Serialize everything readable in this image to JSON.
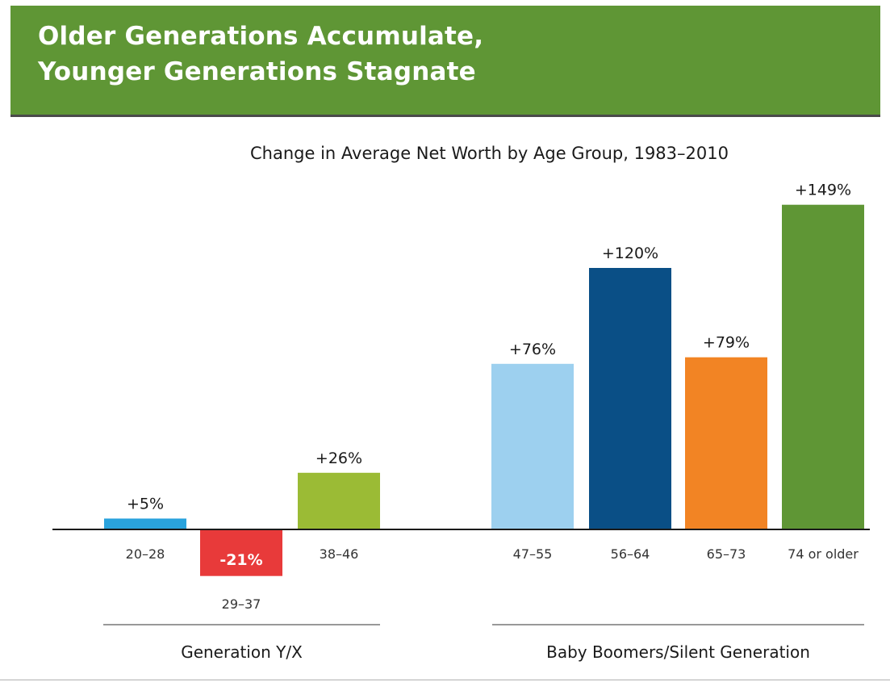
{
  "header": {
    "title_line1": "Older Generations Accumulate,",
    "title_line2": "Younger Generations Stagnate"
  },
  "chart_data": {
    "type": "bar",
    "title": "Change in Average Net Worth by Age Group, 1983–2010",
    "xlabel": "",
    "ylabel": "",
    "unit": "%",
    "ylim": [
      -21,
      149
    ],
    "grid": false,
    "categories": [
      "20–28",
      "29–37",
      "38–46",
      "47–55",
      "56–64",
      "65–73",
      "74 or older"
    ],
    "values": [
      5,
      -21,
      26,
      76,
      120,
      79,
      149
    ],
    "data_labels": [
      "+5%",
      "-21%",
      "+26%",
      "+76%",
      "+120%",
      "+79%",
      "+149%"
    ],
    "colors": [
      "#2aa3dd",
      "#e83a3a",
      "#9bbb35",
      "#9dd0ef",
      "#0a4f86",
      "#f28424",
      "#5f9635"
    ],
    "groups": [
      {
        "label": "Generation Y/X",
        "categories": [
          "20–28",
          "29–37",
          "38–46"
        ]
      },
      {
        "label": "Baby Boomers/Silent Generation",
        "categories": [
          "47–55",
          "56–64",
          "65–73",
          "74 or older"
        ]
      }
    ]
  }
}
